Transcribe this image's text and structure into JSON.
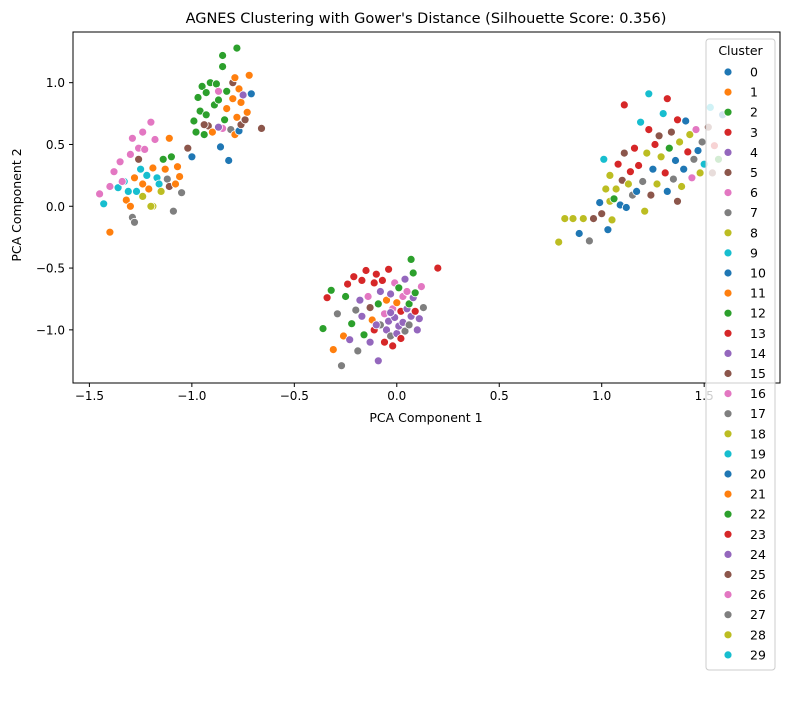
{
  "chart_data": {
    "type": "scatter",
    "title": "AGNES Clustering with Gower's Distance (Silhouette Score: 0.356)",
    "xlabel": "PCA Component 1",
    "ylabel": "PCA Component 2",
    "xlim": [
      -1.58,
      1.87
    ],
    "ylim": [
      -1.43,
      1.41
    ],
    "xticks": [
      -1.5,
      -1.0,
      -0.5,
      0.0,
      0.5,
      1.0,
      1.5
    ],
    "xtick_labels": [
      "−1.5",
      "−1.0",
      "−0.5",
      "0.0",
      "0.5",
      "1.0",
      "1.5"
    ],
    "yticks": [
      -1.0,
      -0.5,
      0.0,
      0.5,
      1.0
    ],
    "ytick_labels": [
      "−1.0",
      "−0.5",
      "0.0",
      "0.5",
      "1.0"
    ],
    "grid": false,
    "legend": {
      "title": "Cluster",
      "placement": "top-right",
      "entries": [
        "0",
        "1",
        "2",
        "3",
        "4",
        "5",
        "6",
        "7",
        "8",
        "9",
        "10",
        "11",
        "12",
        "13",
        "14",
        "15",
        "16",
        "17",
        "18",
        "19",
        "20",
        "21",
        "22",
        "23",
        "24",
        "25",
        "26",
        "27",
        "28",
        "29"
      ]
    },
    "palette": [
      "#1f77b4",
      "#ff7f0e",
      "#2ca02c",
      "#d62728",
      "#9467bd",
      "#8c564b",
      "#e377c2",
      "#7f7f7f",
      "#bcbd22",
      "#17becf"
    ],
    "points": [
      [
        -1.45,
        0.1,
        6
      ],
      [
        -1.43,
        0.02,
        9
      ],
      [
        -1.4,
        0.16,
        6
      ],
      [
        -1.4,
        -0.21,
        1
      ],
      [
        -1.38,
        0.28,
        6
      ],
      [
        -1.36,
        0.15,
        9
      ],
      [
        -1.35,
        0.36,
        6
      ],
      [
        -1.33,
        0.2,
        9
      ],
      [
        -1.32,
        0.05,
        1
      ],
      [
        -1.31,
        0.12,
        19
      ],
      [
        -1.3,
        0.42,
        16
      ],
      [
        -1.29,
        0.55,
        6
      ],
      [
        -1.28,
        0.23,
        11
      ],
      [
        -1.27,
        0.12,
        9
      ],
      [
        -1.3,
        0.0,
        1
      ],
      [
        -1.29,
        -0.09,
        7
      ],
      [
        -1.28,
        -0.13,
        27
      ],
      [
        -1.26,
        0.47,
        6
      ],
      [
        -1.26,
        0.38,
        15
      ],
      [
        -1.25,
        0.3,
        9
      ],
      [
        -1.24,
        0.18,
        21
      ],
      [
        -1.24,
        0.6,
        26
      ],
      [
        -1.23,
        0.46,
        6
      ],
      [
        -1.22,
        0.25,
        19
      ],
      [
        -1.21,
        0.14,
        1
      ],
      [
        -1.2,
        0.68,
        6
      ],
      [
        -1.19,
        0.0,
        8
      ],
      [
        -1.19,
        0.31,
        11
      ],
      [
        -1.18,
        0.54,
        16
      ],
      [
        -1.17,
        0.23,
        19
      ],
      [
        -1.16,
        0.18,
        9
      ],
      [
        -1.15,
        0.12,
        18
      ],
      [
        -1.14,
        0.38,
        12
      ],
      [
        -1.13,
        0.3,
        1
      ],
      [
        -1.12,
        0.22,
        7
      ],
      [
        -1.11,
        0.16,
        5
      ],
      [
        -1.1,
        0.4,
        2
      ],
      [
        -1.09,
        -0.04,
        7
      ],
      [
        -1.08,
        0.18,
        1
      ],
      [
        -1.07,
        0.32,
        1
      ],
      [
        -1.06,
        0.24,
        11
      ],
      [
        -1.05,
        0.11,
        17
      ],
      [
        -1.11,
        0.55,
        11
      ],
      [
        -1.24,
        0.08,
        28
      ],
      [
        -1.2,
        0.0,
        8
      ],
      [
        -1.34,
        0.2,
        16
      ],
      [
        -1.02,
        0.47,
        5
      ],
      [
        -1.0,
        0.4,
        0
      ],
      [
        -0.99,
        0.69,
        2
      ],
      [
        -0.98,
        0.6,
        2
      ],
      [
        -0.97,
        0.88,
        2
      ],
      [
        -0.96,
        0.77,
        2
      ],
      [
        -0.95,
        0.97,
        2
      ],
      [
        -0.94,
        0.58,
        2
      ],
      [
        -0.93,
        0.92,
        2
      ],
      [
        -0.92,
        0.65,
        15
      ],
      [
        -0.91,
        1.0,
        2
      ],
      [
        -0.9,
        0.6,
        1
      ],
      [
        -0.89,
        0.82,
        2
      ],
      [
        -0.88,
        0.99,
        2
      ],
      [
        -0.87,
        0.93,
        6
      ],
      [
        -0.86,
        0.48,
        0
      ],
      [
        -0.85,
        0.63,
        26
      ],
      [
        -0.85,
        1.13,
        2
      ],
      [
        -0.84,
        0.7,
        2
      ],
      [
        -0.83,
        0.93,
        2
      ],
      [
        -0.83,
        0.79,
        1
      ],
      [
        -0.82,
        0.37,
        20
      ],
      [
        -0.81,
        0.62,
        7
      ],
      [
        -0.8,
        0.87,
        11
      ],
      [
        -0.8,
        1.0,
        25
      ],
      [
        -0.79,
        0.58,
        21
      ],
      [
        -0.78,
        1.28,
        2
      ],
      [
        -0.78,
        0.72,
        21
      ],
      [
        -0.77,
        0.95,
        1
      ],
      [
        -0.77,
        0.61,
        0
      ],
      [
        -0.76,
        0.84,
        21
      ],
      [
        -0.76,
        0.66,
        5
      ],
      [
        -0.75,
        0.9,
        4
      ],
      [
        -0.74,
        0.7,
        15
      ],
      [
        -0.73,
        0.76,
        1
      ],
      [
        -0.72,
        1.06,
        1
      ],
      [
        -0.71,
        0.91,
        0
      ],
      [
        -0.66,
        0.63,
        5
      ],
      [
        -0.94,
        0.66,
        5
      ],
      [
        -0.85,
        1.22,
        12
      ],
      [
        -0.79,
        1.04,
        1
      ],
      [
        -0.93,
        0.74,
        12
      ],
      [
        -0.87,
        0.86,
        22
      ],
      [
        -0.87,
        0.64,
        14
      ],
      [
        -0.36,
        -0.99,
        2
      ],
      [
        -0.34,
        -0.74,
        3
      ],
      [
        -0.32,
        -0.68,
        2
      ],
      [
        -0.31,
        -1.16,
        1
      ],
      [
        -0.29,
        -0.87,
        17
      ],
      [
        -0.27,
        -1.29,
        7
      ],
      [
        -0.26,
        -1.05,
        1
      ],
      [
        -0.25,
        -0.73,
        2
      ],
      [
        -0.24,
        -0.63,
        13
      ],
      [
        -0.23,
        -1.08,
        4
      ],
      [
        -0.22,
        -0.95,
        2
      ],
      [
        -0.21,
        -0.57,
        3
      ],
      [
        -0.2,
        -0.84,
        27
      ],
      [
        -0.19,
        -1.17,
        7
      ],
      [
        -0.18,
        -0.76,
        14
      ],
      [
        -0.17,
        -0.6,
        13
      ],
      [
        -0.17,
        -0.89,
        4
      ],
      [
        -0.16,
        -1.04,
        2
      ],
      [
        -0.15,
        -0.52,
        3
      ],
      [
        -0.14,
        -0.73,
        26
      ],
      [
        -0.13,
        -0.82,
        5
      ],
      [
        -0.13,
        -1.1,
        4
      ],
      [
        -0.12,
        -0.92,
        1
      ],
      [
        -0.11,
        -0.62,
        3
      ],
      [
        -0.11,
        -1.0,
        13
      ],
      [
        -0.1,
        -0.55,
        23
      ],
      [
        -0.09,
        -0.79,
        2
      ],
      [
        -0.09,
        -1.25,
        24
      ],
      [
        -0.08,
        -0.96,
        17
      ],
      [
        -0.08,
        -0.69,
        4
      ],
      [
        -0.07,
        -0.6,
        3
      ],
      [
        -0.06,
        -0.87,
        6
      ],
      [
        -0.06,
        -1.1,
        3
      ],
      [
        -0.05,
        -0.76,
        21
      ],
      [
        -0.05,
        -1.0,
        24
      ],
      [
        -0.04,
        -0.51,
        3
      ],
      [
        -0.04,
        -0.93,
        4
      ],
      [
        -0.03,
        -0.71,
        14
      ],
      [
        -0.03,
        -1.05,
        7
      ],
      [
        -0.02,
        -0.83,
        16
      ],
      [
        -0.02,
        -1.13,
        13
      ],
      [
        -0.01,
        -0.62,
        26
      ],
      [
        -0.01,
        -0.9,
        4
      ],
      [
        0.0,
        -0.78,
        1
      ],
      [
        0.0,
        -1.03,
        24
      ],
      [
        0.01,
        -0.66,
        12
      ],
      [
        0.01,
        -0.97,
        14
      ],
      [
        0.02,
        -0.85,
        13
      ],
      [
        0.02,
        -1.07,
        3
      ],
      [
        0.03,
        -0.73,
        26
      ],
      [
        0.03,
        -0.94,
        24
      ],
      [
        0.04,
        -0.59,
        4
      ],
      [
        0.04,
        -1.01,
        7
      ],
      [
        0.05,
        -0.83,
        4
      ],
      [
        0.05,
        -0.69,
        6
      ],
      [
        0.06,
        -0.96,
        17
      ],
      [
        0.06,
        -0.79,
        2
      ],
      [
        0.07,
        -0.43,
        2
      ],
      [
        0.07,
        -0.89,
        14
      ],
      [
        0.08,
        -0.54,
        2
      ],
      [
        0.08,
        -0.74,
        4
      ],
      [
        0.09,
        -0.85,
        3
      ],
      [
        0.09,
        -0.7,
        2
      ],
      [
        0.1,
        -1.0,
        14
      ],
      [
        0.11,
        -0.91,
        4
      ],
      [
        0.12,
        -0.65,
        6
      ],
      [
        0.13,
        -0.82,
        7
      ],
      [
        0.2,
        -0.5,
        3
      ],
      [
        -0.03,
        -0.86,
        14
      ],
      [
        -0.1,
        -0.96,
        4
      ],
      [
        0.79,
        -0.29,
        8
      ],
      [
        0.82,
        -0.1,
        8
      ],
      [
        0.86,
        -0.1,
        8
      ],
      [
        0.89,
        -0.22,
        0
      ],
      [
        0.91,
        -0.1,
        28
      ],
      [
        0.94,
        -0.28,
        7
      ],
      [
        0.96,
        -0.1,
        25
      ],
      [
        0.99,
        0.03,
        10
      ],
      [
        1.0,
        -0.06,
        5
      ],
      [
        1.01,
        0.38,
        9
      ],
      [
        1.02,
        0.14,
        8
      ],
      [
        1.03,
        -0.19,
        20
      ],
      [
        1.04,
        0.04,
        28
      ],
      [
        1.04,
        0.25,
        8
      ],
      [
        1.05,
        -0.11,
        18
      ],
      [
        1.06,
        0.06,
        12
      ],
      [
        1.07,
        0.14,
        8
      ],
      [
        1.08,
        0.34,
        13
      ],
      [
        1.09,
        0.01,
        0
      ],
      [
        1.1,
        0.21,
        5
      ],
      [
        1.11,
        0.43,
        15
      ],
      [
        1.11,
        0.82,
        23
      ],
      [
        1.12,
        -0.01,
        10
      ],
      [
        1.13,
        0.18,
        8
      ],
      [
        1.14,
        0.28,
        13
      ],
      [
        1.15,
        0.09,
        7
      ],
      [
        1.16,
        0.47,
        3
      ],
      [
        1.17,
        0.12,
        0
      ],
      [
        1.18,
        0.33,
        23
      ],
      [
        1.19,
        0.68,
        9
      ],
      [
        1.2,
        0.2,
        7
      ],
      [
        1.21,
        -0.04,
        28
      ],
      [
        1.22,
        0.43,
        8
      ],
      [
        1.23,
        0.62,
        3
      ],
      [
        1.23,
        0.91,
        9
      ],
      [
        1.24,
        0.09,
        5
      ],
      [
        1.25,
        0.3,
        0
      ],
      [
        1.26,
        0.5,
        3
      ],
      [
        1.27,
        0.18,
        28
      ],
      [
        1.28,
        0.57,
        5
      ],
      [
        1.29,
        0.4,
        8
      ],
      [
        1.3,
        0.75,
        9
      ],
      [
        1.31,
        0.27,
        13
      ],
      [
        1.32,
        0.12,
        0
      ],
      [
        1.32,
        0.87,
        3
      ],
      [
        1.33,
        0.47,
        22
      ],
      [
        1.34,
        0.6,
        5
      ],
      [
        1.35,
        0.22,
        7
      ],
      [
        1.36,
        0.37,
        0
      ],
      [
        1.37,
        0.7,
        3
      ],
      [
        1.37,
        0.04,
        5
      ],
      [
        1.38,
        0.52,
        8
      ],
      [
        1.39,
        0.16,
        18
      ],
      [
        1.4,
        0.3,
        10
      ],
      [
        1.41,
        0.69,
        0
      ],
      [
        1.42,
        0.44,
        23
      ],
      [
        1.43,
        0.58,
        8
      ],
      [
        1.44,
        0.23,
        6
      ],
      [
        1.45,
        0.38,
        7
      ],
      [
        1.46,
        0.62,
        16
      ],
      [
        1.47,
        0.45,
        10
      ],
      [
        1.48,
        0.27,
        8
      ],
      [
        1.49,
        0.52,
        7
      ],
      [
        1.5,
        0.34,
        9
      ],
      [
        1.52,
        0.64,
        25
      ],
      [
        1.53,
        0.8,
        9
      ],
      [
        1.54,
        0.27,
        5
      ],
      [
        1.55,
        0.49,
        3
      ],
      [
        1.57,
        0.38,
        12
      ],
      [
        1.59,
        0.74,
        0
      ]
    ]
  }
}
